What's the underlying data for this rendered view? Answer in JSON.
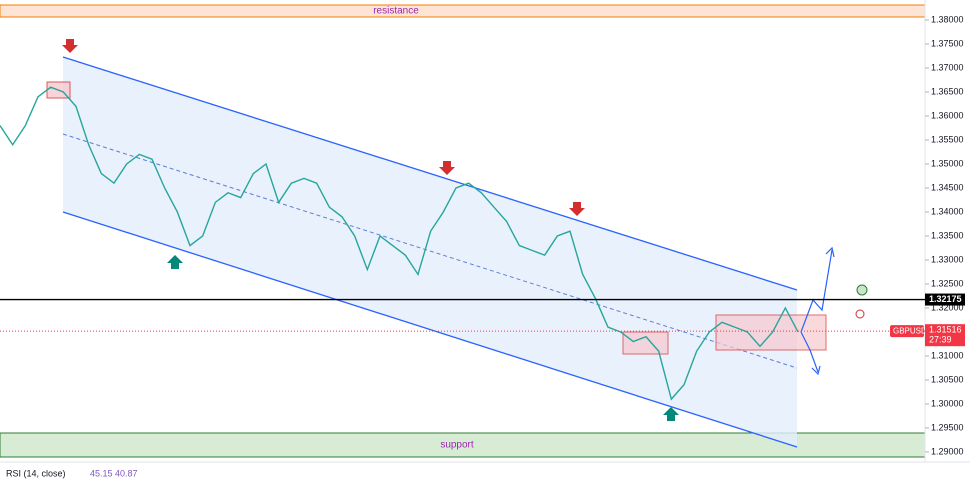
{
  "chart_data": {
    "type": "line",
    "annotations": {
      "resistance": "resistance",
      "support": "support"
    },
    "values": [
      1.358,
      1.354,
      1.358,
      1.364,
      1.366,
      1.365,
      1.362,
      1.354,
      1.348,
      1.346,
      1.35,
      1.352,
      1.351,
      1.345,
      1.34,
      1.333,
      1.335,
      1.342,
      1.344,
      1.343,
      1.348,
      1.35,
      1.342,
      1.346,
      1.347,
      1.346,
      1.341,
      1.339,
      1.335,
      1.328,
      1.335,
      1.333,
      1.331,
      1.327,
      1.336,
      1.34,
      1.345,
      1.346,
      1.344,
      1.341,
      1.338,
      1.333,
      1.332,
      1.331,
      1.335,
      1.336,
      1.327,
      1.322,
      1.316,
      1.315,
      1.313,
      1.314,
      1.311,
      1.301,
      1.304,
      1.311,
      1.315,
      1.317,
      1.316,
      1.315,
      1.312,
      1.315,
      1.32,
      1.315
    ],
    "color": "#26a69a",
    "ylim": [
      1.2879,
      1.38417
    ],
    "yticks": [
      {
        "value": 1.38,
        "label": "1.38000"
      },
      {
        "value": 1.375,
        "label": "1.37500"
      },
      {
        "value": 1.37,
        "label": "1.37000"
      },
      {
        "value": 1.365,
        "label": "1.36500"
      },
      {
        "value": 1.36,
        "label": "1.36000"
      },
      {
        "value": 1.355,
        "label": "1.35500"
      },
      {
        "value": 1.35,
        "label": "1.35000"
      },
      {
        "value": 1.345,
        "label": "1.34500"
      },
      {
        "value": 1.34,
        "label": "1.34000"
      },
      {
        "value": 1.335,
        "label": "1.33500"
      },
      {
        "value": 1.33,
        "label": "1.33000"
      },
      {
        "value": 1.325,
        "label": "1.32500"
      },
      {
        "value": 1.32,
        "label": "1.32000"
      },
      {
        "value": 1.315,
        "label": "1.31500"
      },
      {
        "value": 1.31,
        "label": "1.31000"
      },
      {
        "value": 1.305,
        "label": "1.30500"
      },
      {
        "value": 1.3,
        "label": "1.30000"
      },
      {
        "value": 1.295,
        "label": "1.29500"
      },
      {
        "value": 1.29,
        "label": "1.29000"
      }
    ],
    "hline": 1.32175,
    "last_price": 1.31516,
    "symbol": "GBPUSD",
    "countdown": "27:39",
    "indicator": {
      "label": "RSI (14, close)",
      "values": [
        45.15,
        40.87
      ]
    }
  }
}
